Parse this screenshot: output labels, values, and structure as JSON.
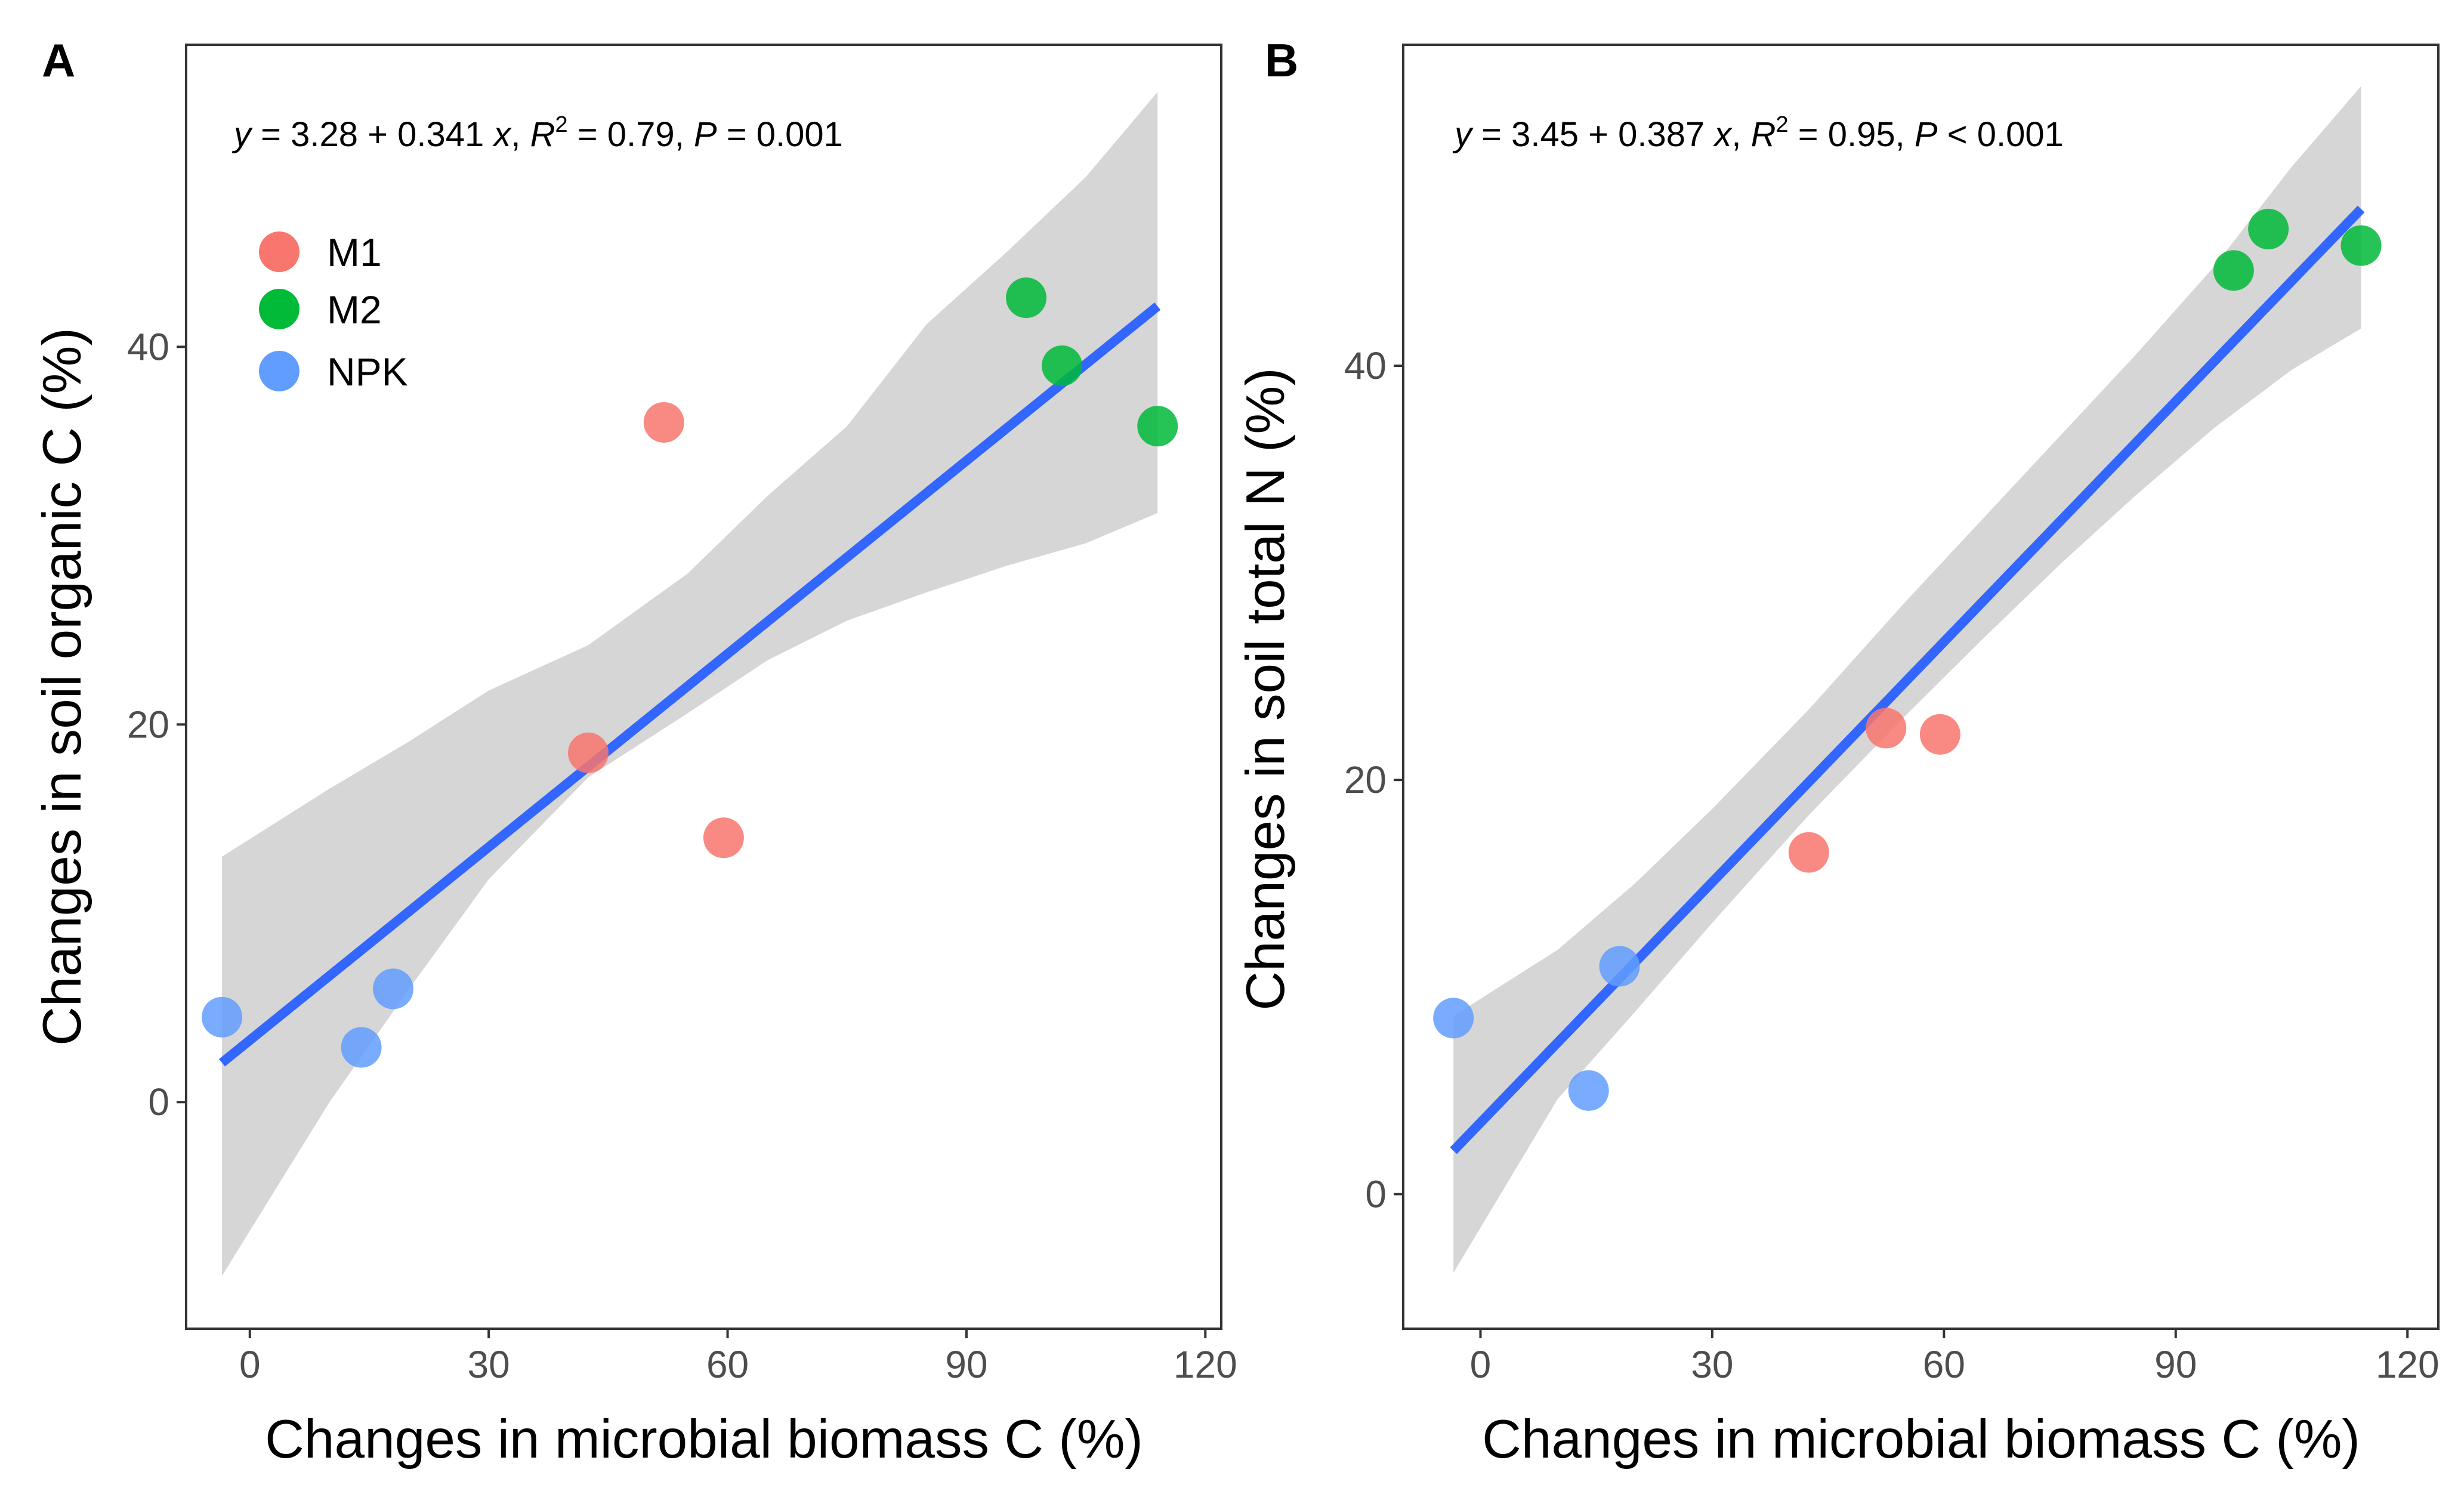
{
  "figure": {
    "chart_data": [
      {
        "type": "scatter",
        "panel": "A",
        "title": "",
        "xlabel": "Changes in microbial biomass C (%)",
        "ylabel": "Changes in soil organic C (%)",
        "xlim": [
          -8,
          122
        ],
        "ylim": [
          -12,
          56
        ],
        "xticks": [
          0,
          30,
          60,
          90,
          120
        ],
        "yticks": [
          0,
          20,
          40
        ],
        "equation": {
          "y": "y",
          "a": "3.28",
          "b": "0.341",
          "x": "x",
          "r2": "0.79",
          "p_label": "P",
          "p_op": "=",
          "p": "0.001"
        },
        "fit": {
          "intercept": 3.28,
          "slope": 0.341,
          "x_range": [
            -3.5,
            114
          ]
        },
        "confidence_band": {
          "x": [
            -3.5,
            10,
            20,
            30,
            42.5,
            55,
            65,
            75,
            85,
            95,
            105,
            114
          ],
          "lower": [
            -9.2,
            0.0,
            6.0,
            11.8,
            17.2,
            20.6,
            23.4,
            25.5,
            27.0,
            28.4,
            29.6,
            31.2
          ],
          "upper": [
            13.0,
            16.6,
            19.1,
            21.8,
            24.2,
            28.0,
            32.1,
            35.8,
            41.2,
            45.0,
            49.0,
            53.5
          ]
        },
        "series": [
          {
            "name": "M1",
            "color": "#f8766d",
            "points": [
              [
                42.5,
                18.5
              ],
              [
                52,
                36
              ],
              [
                59.5,
                14
              ]
            ]
          },
          {
            "name": "M2",
            "color": "#00ba38",
            "points": [
              [
                97.5,
                42.6
              ],
              [
                102,
                39
              ],
              [
                114,
                35.8
              ]
            ]
          },
          {
            "name": "NPK",
            "color": "#619cff",
            "points": [
              [
                -3.5,
                4.5
              ],
              [
                14,
                2.9
              ],
              [
                18,
                6
              ]
            ]
          }
        ],
        "legend": {
          "position": "top-left",
          "entries": [
            "M1",
            "M2",
            "NPK"
          ]
        }
      },
      {
        "type": "scatter",
        "panel": "B",
        "title": "",
        "xlabel": "Changes in microbial biomass C  (%)",
        "ylabel": "Changes in soil total N (%)",
        "xlim": [
          -10,
          124
        ],
        "ylim": [
          -6.5,
          55.5
        ],
        "xticks": [
          0,
          30,
          60,
          90,
          120
        ],
        "yticks": [
          0,
          20,
          40
        ],
        "equation": {
          "y": "y",
          "a": "3.45",
          "b": "0.387",
          "x": "x",
          "r2": "0.95",
          "p_label": "P",
          "p_op": "<",
          "p": "0.001"
        },
        "fit": {
          "intercept": 3.45,
          "slope": 0.387,
          "x_range": [
            -3.5,
            114
          ]
        },
        "confidence_band": {
          "x": [
            -3.5,
            10,
            20,
            30,
            42.5,
            55,
            65,
            75,
            85,
            95,
            105,
            114
          ],
          "lower": [
            -3.8,
            4.6,
            8.8,
            13.1,
            18.3,
            23.1,
            26.8,
            30.4,
            33.8,
            37.0,
            39.8,
            41.8
          ],
          "upper": [
            8.6,
            11.8,
            15.0,
            18.6,
            23.4,
            28.6,
            32.6,
            36.6,
            40.6,
            44.8,
            49.6,
            53.5
          ]
        },
        "series": [
          {
            "name": "M1",
            "color": "#f8766d",
            "points": [
              [
                42.5,
                16.5
              ],
              [
                52.5,
                22.5
              ],
              [
                59.5,
                22.2
              ]
            ]
          },
          {
            "name": "M2",
            "color": "#00ba38",
            "points": [
              [
                97.5,
                44.6
              ],
              [
                102,
                46.6
              ],
              [
                114,
                45.8
              ]
            ]
          },
          {
            "name": "NPK",
            "color": "#619cff",
            "points": [
              [
                -3.5,
                8.5
              ],
              [
                14,
                5
              ],
              [
                18,
                11
              ]
            ]
          }
        ]
      }
    ]
  }
}
